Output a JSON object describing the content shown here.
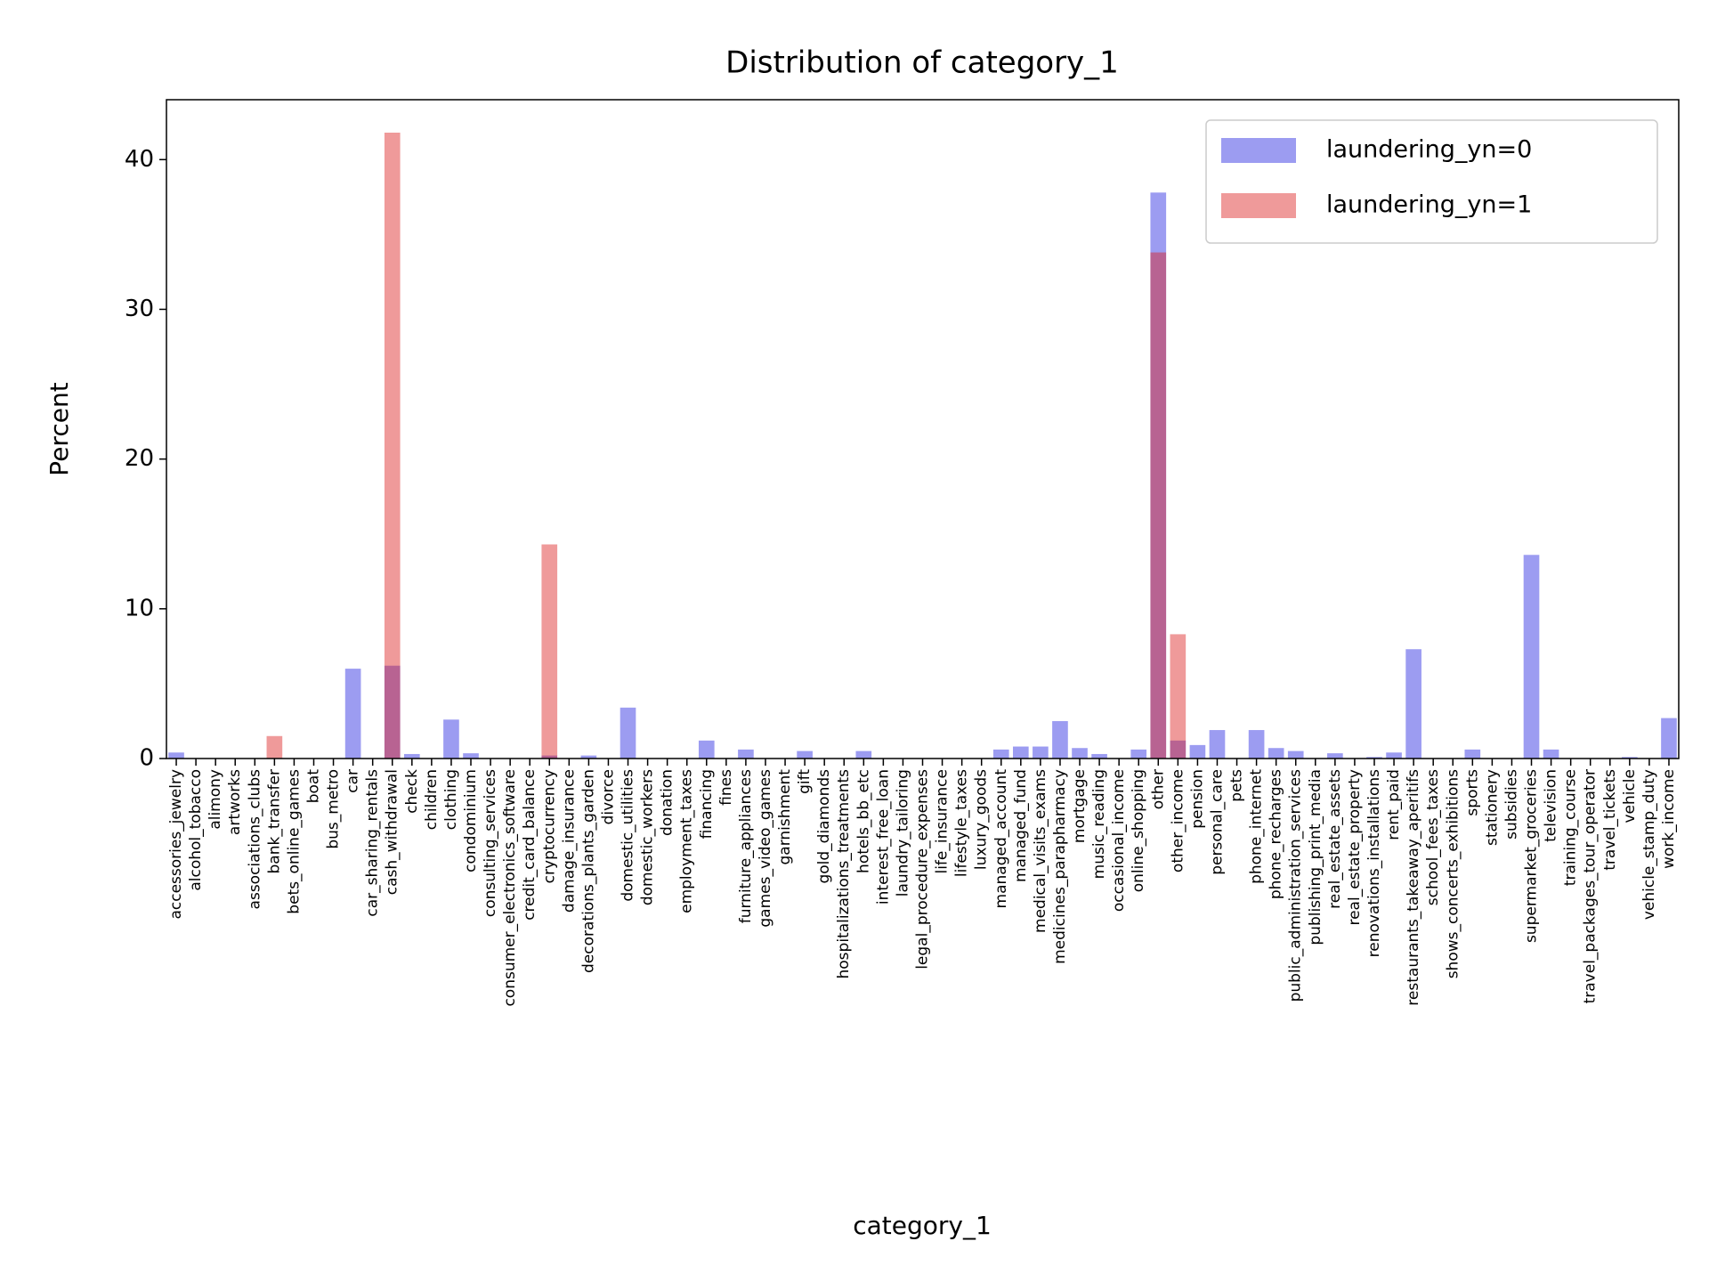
{
  "chart_data": {
    "type": "bar",
    "title": "Distribution of category_1",
    "x_label": "category_1",
    "y_label": "Percent",
    "categories": [
      "accessories_jewelry",
      "alcohol_tobacco",
      "alimony",
      "artworks",
      "associations_clubs",
      "bank_transfer",
      "bets_online_games",
      "boat",
      "bus_metro",
      "car",
      "car_sharing_rentals",
      "cash_withdrawal",
      "check",
      "children",
      "clothing",
      "condominium",
      "consulting_services",
      "consumer_electronics_software",
      "credit_card_balance",
      "cryptocurrency",
      "damage_insurance",
      "decorations_plants_garden",
      "divorce",
      "domestic_utilities",
      "domestic_workers",
      "donation",
      "employment_taxes",
      "financing",
      "fines",
      "furniture_appliances",
      "games_video_games",
      "garnishment",
      "gift",
      "gold_diamonds",
      "hospitalizations_treatments",
      "hotels_bb_etc",
      "interest_free_loan",
      "laundry_tailoring",
      "legal_procedure_expenses",
      "life_insurance",
      "lifestyle_taxes",
      "luxury_goods",
      "managed_account",
      "managed_fund",
      "medical_visits_exams",
      "medicines_parapharmacy",
      "mortgage",
      "music_reading",
      "occasional_income",
      "online_shopping",
      "other",
      "other_income",
      "pension",
      "personal_care",
      "pets",
      "phone_internet",
      "phone_recharges",
      "public_administration_services",
      "publishing_print_media",
      "real_estate_assets",
      "real_estate_property",
      "renovations_installations",
      "rent_paid",
      "restaurants_takeaway_aperitifs",
      "school_fees_taxes",
      "shows_concerts_exhibitions",
      "sports",
      "stationery",
      "subsidies",
      "supermarket_groceries",
      "television",
      "training_course",
      "travel_packages_tour_operator",
      "travel_tickets",
      "vehicle",
      "vehicle_stamp_duty",
      "work_income"
    ],
    "series": [
      {
        "name": "laundering_yn=0",
        "color": "#2323e0",
        "values": [
          0.4,
          0,
          0,
          0,
          0,
          0,
          0,
          0,
          0,
          6.0,
          0,
          6.2,
          0.3,
          0,
          2.6,
          0.35,
          0,
          0,
          0,
          0.2,
          0,
          0.2,
          0,
          3.4,
          0,
          0,
          0,
          1.2,
          0,
          0.6,
          0,
          0,
          0.5,
          0,
          0,
          0.5,
          0,
          0,
          0,
          0,
          0,
          0,
          0.6,
          0.8,
          0.8,
          2.5,
          0.7,
          0.3,
          0,
          0.6,
          37.8,
          1.2,
          0.9,
          1.9,
          0,
          1.9,
          0.7,
          0.5,
          0,
          0.35,
          0,
          0.1,
          0.4,
          7.3,
          0,
          0,
          0.6,
          0,
          0,
          13.6,
          0.6,
          0,
          0,
          0,
          0.1,
          0,
          2.7
        ]
      },
      {
        "name": "laundering_yn=1",
        "color": "#dc2020",
        "values": [
          0,
          0,
          0,
          0,
          0,
          1.5,
          0,
          0,
          0,
          0,
          0,
          41.8,
          0,
          0,
          0,
          0,
          0,
          0,
          0,
          14.3,
          0,
          0,
          0,
          0,
          0,
          0,
          0,
          0,
          0,
          0,
          0,
          0,
          0,
          0,
          0,
          0,
          0,
          0,
          0,
          0,
          0,
          0,
          0,
          0,
          0,
          0,
          0,
          0,
          0,
          0,
          33.8,
          8.3,
          0,
          0,
          0,
          0,
          0,
          0,
          0,
          0,
          0,
          0,
          0,
          0,
          0,
          0,
          0,
          0,
          0,
          0,
          0,
          0,
          0,
          0,
          0,
          0,
          0
        ]
      }
    ],
    "ylim": [
      0,
      44
    ],
    "yticks": [
      0,
      10,
      20,
      30,
      40
    ],
    "grid": false,
    "legend": "upper right"
  }
}
